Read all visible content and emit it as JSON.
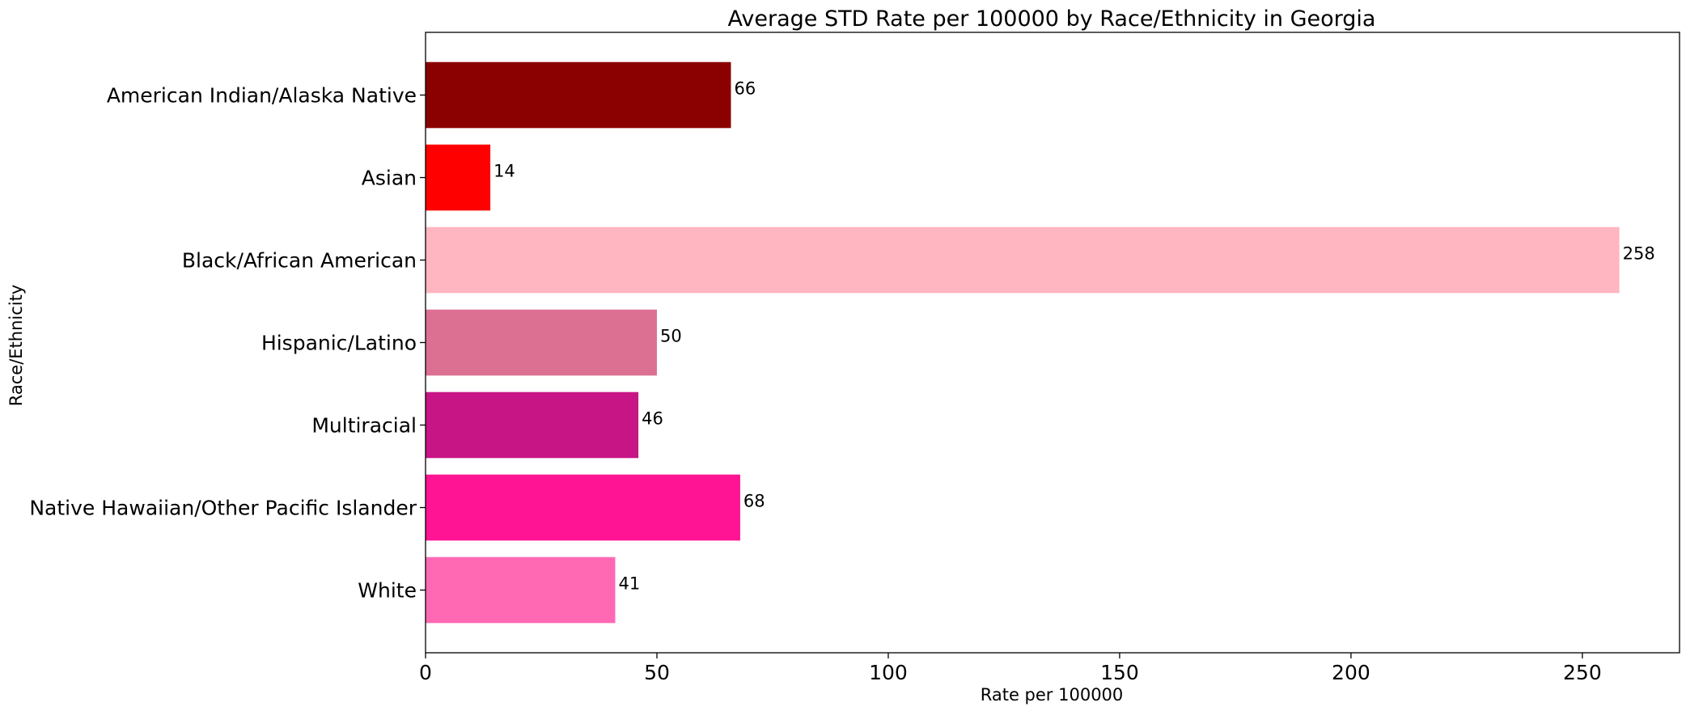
{
  "chart_data": {
    "type": "bar",
    "orientation": "horizontal",
    "title": "Average STD Rate per 100000 by Race/Ethnicity in Georgia",
    "xlabel": "Rate per 100000",
    "ylabel": "Race/Ethnicity",
    "categories": [
      "American Indian/Alaska Native",
      "Asian",
      "Black/African American",
      "Hispanic/Latino",
      "Multiracial",
      "Native Hawaiian/Other Pacific Islander",
      "White"
    ],
    "values": [
      66,
      14,
      258,
      50,
      46,
      68,
      41
    ],
    "data_labels": [
      "66",
      "14",
      "258",
      "50",
      "46",
      "68",
      "41"
    ],
    "colors": [
      "#8b0000",
      "#ff0000",
      "#ffb6c1",
      "#db7093",
      "#c71585",
      "#ff1493",
      "#ff69b4"
    ],
    "xlim": [
      0,
      271
    ],
    "xticks": [
      0,
      50,
      100,
      150,
      200,
      250
    ],
    "xtick_labels": [
      "0",
      "50",
      "100",
      "150",
      "200",
      "250"
    ],
    "grid": false,
    "legend": "none"
  }
}
